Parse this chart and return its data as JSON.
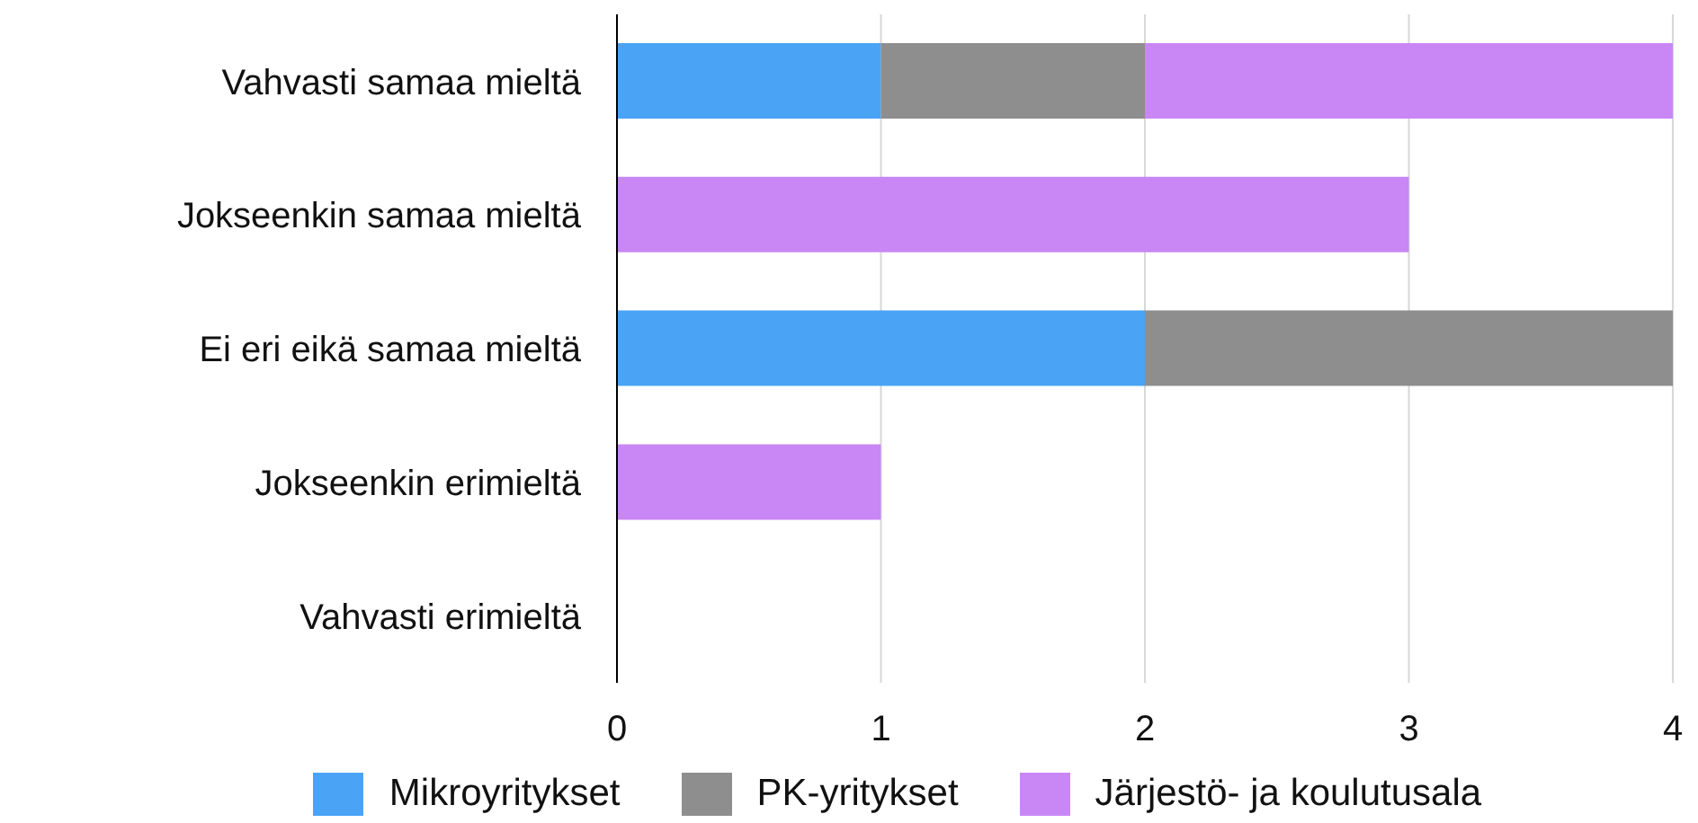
{
  "chart_data": {
    "type": "bar",
    "orientation": "horizontal",
    "stacked": true,
    "categories": [
      "Vahvasti samaa mieltä",
      "Jokseenkin samaa mieltä",
      "Ei eri eikä samaa mieltä",
      "Jokseenkin erimieltä",
      "Vahvasti erimieltä"
    ],
    "series": [
      {
        "name": "Mikroyritykset",
        "color": "#4aa3f5",
        "values": [
          1,
          0,
          2,
          0,
          0
        ]
      },
      {
        "name": "PK-yritykset",
        "color": "#8e8e8e",
        "values": [
          1,
          0,
          2,
          0,
          0
        ]
      },
      {
        "name": "Järjestö- ja koulutusala",
        "color": "#c987f5",
        "values": [
          2,
          3,
          0,
          1,
          0
        ]
      }
    ],
    "xlim": [
      0,
      4
    ],
    "xticks": [
      0,
      1,
      2,
      3,
      4
    ],
    "grid": "x",
    "legend": "bottom"
  }
}
